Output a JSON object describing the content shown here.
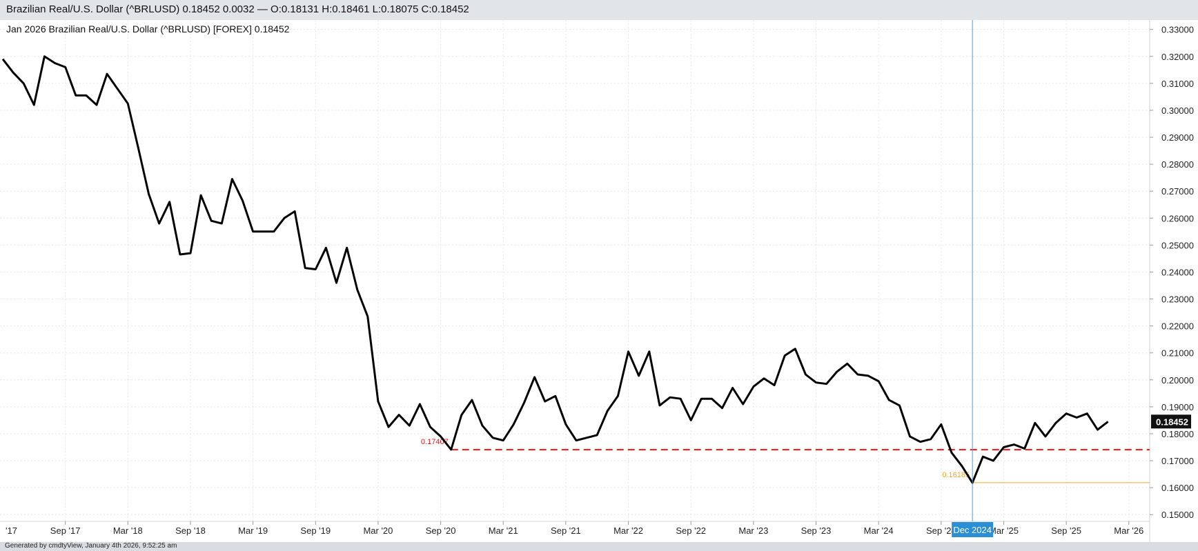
{
  "header": {
    "quote": "Brazilian Real/U.S. Dollar (^BRLUSD) 0.18452 0.0032 — O:0.18131 H:0.18461 L:0.18075 C:0.18452"
  },
  "footer": {
    "generated": "Generated by cmdtyView, January 4th 2026, 9:52:25 am"
  },
  "chart_data": {
    "type": "line",
    "title": "Jan 2026  Brazilian Real/U.S. Dollar (^BRLUSD) [FOREX] 0.18452",
    "xlabel": "",
    "ylabel": "",
    "x_ticks": [
      "'17",
      "Sep '17",
      "Mar '18",
      "Sep '18",
      "Mar '19",
      "Sep '19",
      "Mar '20",
      "Sep '20",
      "Mar '21",
      "Sep '21",
      "Mar '22",
      "Sep '22",
      "Mar '23",
      "Sep '23",
      "Mar '24",
      "Sep '24",
      "Mar '25",
      "Sep '25",
      "Mar '26"
    ],
    "y_ticks": [
      "0.15000",
      "0.16000",
      "0.17000",
      "0.18000",
      "0.19000",
      "0.20000",
      "0.21000",
      "0.22000",
      "0.23000",
      "0.24000",
      "0.25000",
      "0.26000",
      "0.27000",
      "0.28000",
      "0.29000",
      "0.30000",
      "0.31000",
      "0.32000",
      "0.33000"
    ],
    "ylim": [
      0.1475,
      0.3335
    ],
    "xlim": [
      "2017-03",
      "2026-05"
    ],
    "grid": true,
    "series": [
      {
        "color": "#000000",
        "x": [
          "2017-03",
          "2017-04",
          "2017-05",
          "2017-06",
          "2017-07",
          "2017-08",
          "2017-09",
          "2017-10",
          "2017-11",
          "2017-12",
          "2018-01",
          "2018-02",
          "2018-03",
          "2018-04",
          "2018-05",
          "2018-06",
          "2018-07",
          "2018-08",
          "2018-09",
          "2018-10",
          "2018-11",
          "2018-12",
          "2019-01",
          "2019-02",
          "2019-03",
          "2019-04",
          "2019-05",
          "2019-06",
          "2019-07",
          "2019-08",
          "2019-09",
          "2019-10",
          "2019-11",
          "2019-12",
          "2020-01",
          "2020-02",
          "2020-03",
          "2020-04",
          "2020-05",
          "2020-06",
          "2020-07",
          "2020-08",
          "2020-09",
          "2020-10",
          "2020-11",
          "2020-12",
          "2021-01",
          "2021-02",
          "2021-03",
          "2021-04",
          "2021-05",
          "2021-06",
          "2021-07",
          "2021-08",
          "2021-09",
          "2021-10",
          "2021-11",
          "2021-12",
          "2022-01",
          "2022-02",
          "2022-03",
          "2022-04",
          "2022-05",
          "2022-06",
          "2022-07",
          "2022-08",
          "2022-09",
          "2022-10",
          "2022-11",
          "2022-12",
          "2023-01",
          "2023-02",
          "2023-03",
          "2023-04",
          "2023-05",
          "2023-06",
          "2023-07",
          "2023-08",
          "2023-09",
          "2023-10",
          "2023-11",
          "2023-12",
          "2024-01",
          "2024-02",
          "2024-03",
          "2024-04",
          "2024-05",
          "2024-06",
          "2024-07",
          "2024-08",
          "2024-09",
          "2024-10",
          "2024-11",
          "2024-12",
          "2025-01",
          "2025-02",
          "2025-03",
          "2025-04",
          "2025-05",
          "2025-06",
          "2025-07",
          "2025-08",
          "2025-09",
          "2025-10",
          "2025-11",
          "2025-12",
          "2026-01"
        ],
        "values": [
          0.319,
          0.314,
          0.31,
          0.302,
          0.32,
          0.3175,
          0.316,
          0.3055,
          0.3055,
          0.302,
          0.3135,
          0.308,
          0.3025,
          0.286,
          0.269,
          0.258,
          0.266,
          0.2465,
          0.247,
          0.2685,
          0.259,
          0.258,
          0.2745,
          0.2665,
          0.255,
          0.255,
          0.255,
          0.26,
          0.2625,
          0.2415,
          0.241,
          0.249,
          0.236,
          0.249,
          0.2335,
          0.2235,
          0.192,
          0.1825,
          0.187,
          0.183,
          0.191,
          0.1825,
          0.179,
          0.1741,
          0.187,
          0.1925,
          0.183,
          0.1785,
          0.1775,
          0.1835,
          0.1915,
          0.201,
          0.192,
          0.194,
          0.1835,
          0.1775,
          0.1785,
          0.1795,
          0.1885,
          0.194,
          0.2105,
          0.2015,
          0.2105,
          0.1905,
          0.1935,
          0.193,
          0.185,
          0.193,
          0.193,
          0.1895,
          0.197,
          0.191,
          0.1975,
          0.2005,
          0.198,
          0.209,
          0.2115,
          0.202,
          0.199,
          0.1985,
          0.203,
          0.206,
          0.202,
          0.2015,
          0.1995,
          0.1925,
          0.1905,
          0.179,
          0.177,
          0.178,
          0.1835,
          0.173,
          0.168,
          0.1618,
          0.1715,
          0.17,
          0.175,
          0.176,
          0.1745,
          0.184,
          0.179,
          0.184,
          0.1875,
          0.186,
          0.1875,
          0.1815,
          0.1845
        ]
      }
    ],
    "reference_lines": [
      {
        "label": "0.17407",
        "value": 0.17407,
        "from": "2020-10",
        "color": "#e8141c",
        "style": "dashed"
      },
      {
        "label": "0.16185",
        "value": 0.16185,
        "from": "2024-12",
        "color": "#f5a623",
        "style": "solid"
      }
    ],
    "crosshair": {
      "label": "Dec 2024",
      "x": "2024-12",
      "color": "#3ca0e6"
    },
    "last_price": {
      "label": "0.18452",
      "value": 0.18452
    }
  }
}
